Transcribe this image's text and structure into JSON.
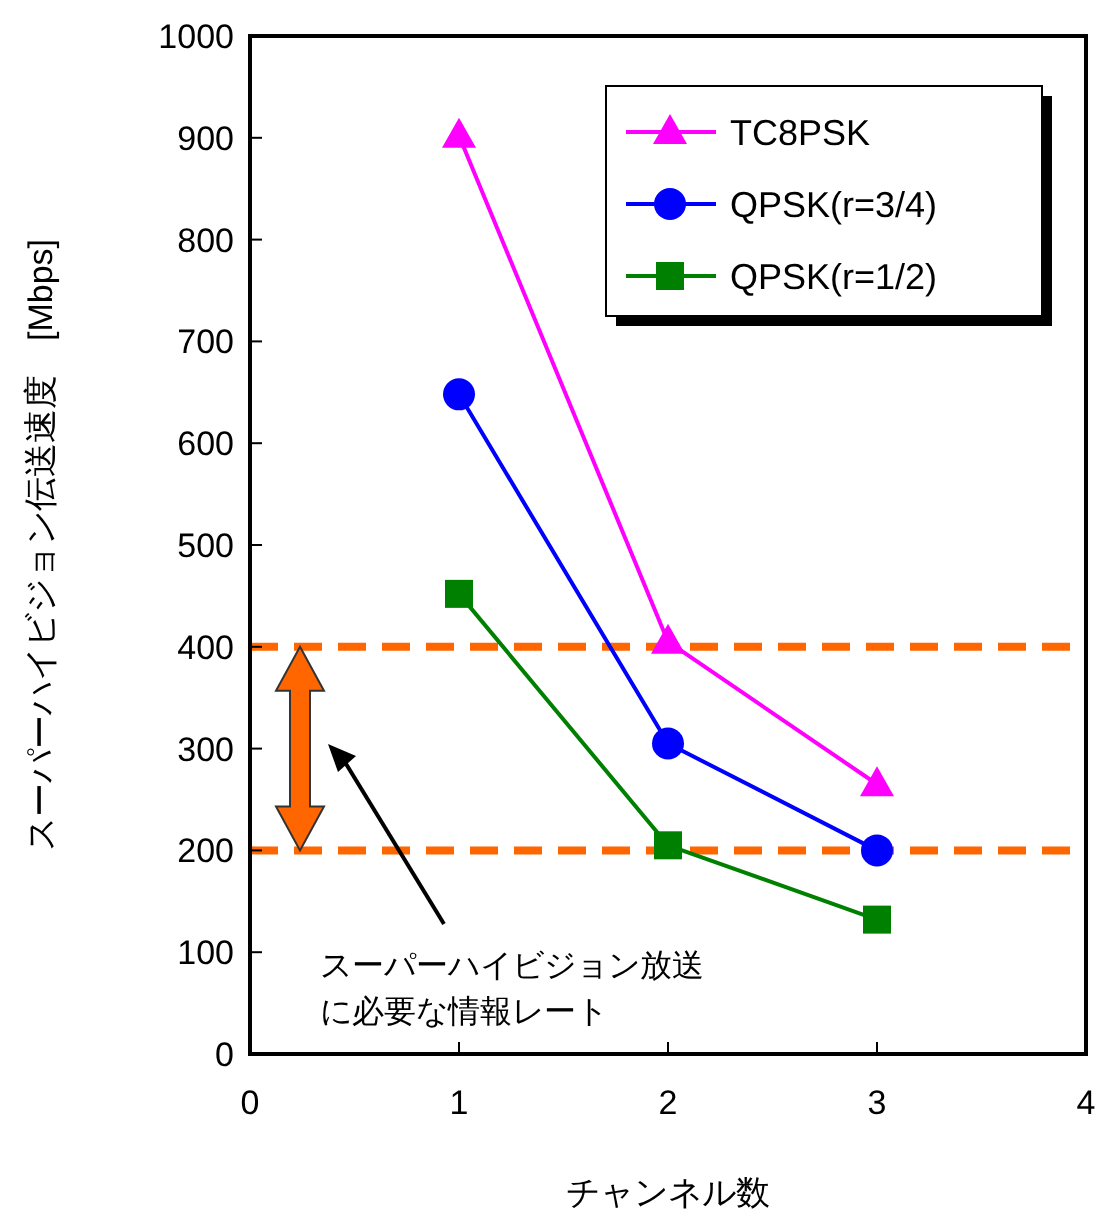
{
  "chart_data": {
    "type": "line",
    "xlabel": "チャンネル数",
    "ylabel": "スーパーハイビジョン伝送速度　[Mbps]",
    "x": [
      1,
      2,
      3
    ],
    "series": [
      {
        "name": "TC8PSK",
        "color": "#ff00ff",
        "marker": "triangle",
        "values": [
          902,
          405,
          265
        ]
      },
      {
        "name": "QPSK(r=3/4)",
        "color": "#0000ff",
        "marker": "circle",
        "values": [
          648,
          305,
          200
        ]
      },
      {
        "name": "QPSK(r=1/2)",
        "color": "#008000",
        "marker": "square",
        "values": [
          452,
          205,
          132
        ]
      }
    ],
    "xlim": [
      0,
      4
    ],
    "xticks": [
      0,
      1,
      2,
      3,
      4
    ],
    "ylim": [
      0,
      1000
    ],
    "yticks": [
      0,
      100,
      200,
      300,
      400,
      500,
      600,
      700,
      800,
      900,
      1000
    ],
    "ref_lines": [
      {
        "axis": "y",
        "value": 400,
        "color": "#ff6600",
        "line_style": "dashed"
      },
      {
        "axis": "y",
        "value": 200,
        "color": "#ff6600",
        "line_style": "dashed"
      }
    ],
    "annotations": [
      "スーパーハイビジョン放送",
      "に必要な情報レート"
    ],
    "grid": false,
    "legend": "top right"
  }
}
